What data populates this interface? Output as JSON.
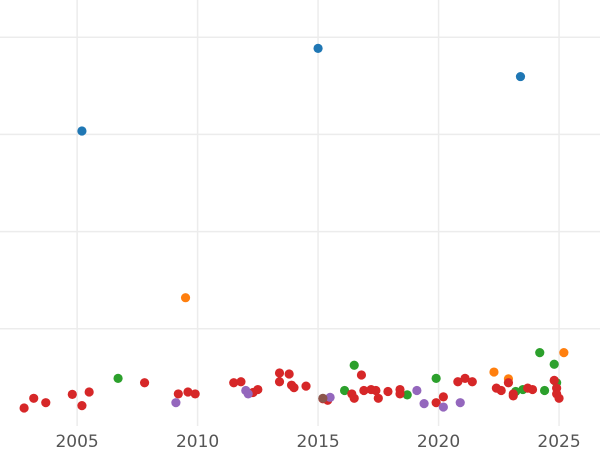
{
  "chart_data": {
    "type": "scatter",
    "title": "",
    "xlabel": "",
    "ylabel": "",
    "xlim": [
      2001.8,
      2026.7
    ],
    "ylim": [
      0,
      100
    ],
    "xticks": [
      2005,
      2010,
      2015,
      2020,
      2025
    ],
    "yticks": [
      20,
      40,
      60,
      80,
      100
    ],
    "show_y_tick_labels": false,
    "grid": true,
    "series": [
      {
        "color": "#1f77b4",
        "points": [
          [
            2005.2,
            60.7
          ],
          [
            2015.0,
            77.7
          ],
          [
            2023.4,
            71.9
          ]
        ]
      },
      {
        "color": "#ff7f0e",
        "points": [
          [
            2009.5,
            26.4
          ],
          [
            2022.3,
            11.1
          ],
          [
            2022.9,
            9.7
          ],
          [
            2025.2,
            15.1
          ]
        ]
      },
      {
        "color": "#2ca02c",
        "points": [
          [
            2006.7,
            9.8
          ],
          [
            2016.1,
            7.3
          ],
          [
            2016.5,
            12.5
          ],
          [
            2018.7,
            6.4
          ],
          [
            2019.9,
            9.8
          ],
          [
            2023.2,
            7.1
          ],
          [
            2023.5,
            7.5
          ],
          [
            2024.2,
            15.1
          ],
          [
            2024.4,
            7.3
          ],
          [
            2024.8,
            12.7
          ],
          [
            2024.9,
            8.9
          ]
        ]
      },
      {
        "color": "#d62728",
        "points": [
          [
            2002.8,
            3.7
          ],
          [
            2003.2,
            5.7
          ],
          [
            2003.7,
            4.8
          ],
          [
            2004.8,
            6.5
          ],
          [
            2005.2,
            4.2
          ],
          [
            2005.5,
            7.0
          ],
          [
            2007.8,
            8.9
          ],
          [
            2009.2,
            6.6
          ],
          [
            2009.6,
            7.0
          ],
          [
            2009.9,
            6.6
          ],
          [
            2011.5,
            8.9
          ],
          [
            2011.8,
            9.1
          ],
          [
            2012.3,
            6.9
          ],
          [
            2012.5,
            7.5
          ],
          [
            2013.4,
            10.9
          ],
          [
            2013.4,
            9.1
          ],
          [
            2013.8,
            10.7
          ],
          [
            2013.9,
            8.4
          ],
          [
            2014.0,
            7.9
          ],
          [
            2014.5,
            8.2
          ],
          [
            2015.2,
            5.6
          ],
          [
            2015.4,
            5.3
          ],
          [
            2016.4,
            6.6
          ],
          [
            2016.5,
            5.7
          ],
          [
            2016.8,
            10.5
          ],
          [
            2016.9,
            7.3
          ],
          [
            2017.2,
            7.5
          ],
          [
            2017.4,
            7.3
          ],
          [
            2017.5,
            5.7
          ],
          [
            2017.9,
            7.1
          ],
          [
            2018.4,
            7.5
          ],
          [
            2018.4,
            6.6
          ],
          [
            2019.9,
            4.8
          ],
          [
            2020.2,
            6.0
          ],
          [
            2020.8,
            9.1
          ],
          [
            2021.1,
            9.8
          ],
          [
            2021.4,
            9.1
          ],
          [
            2022.4,
            7.8
          ],
          [
            2022.6,
            7.3
          ],
          [
            2022.9,
            8.9
          ],
          [
            2023.1,
            6.6
          ],
          [
            2023.1,
            6.2
          ],
          [
            2023.7,
            7.8
          ],
          [
            2023.9,
            7.5
          ],
          [
            2024.8,
            9.4
          ],
          [
            2024.9,
            7.8
          ],
          [
            2024.9,
            6.6
          ],
          [
            2025.0,
            5.7
          ]
        ]
      },
      {
        "color": "#9467bd",
        "points": [
          [
            2009.1,
            4.8
          ],
          [
            2012.0,
            7.3
          ],
          [
            2012.1,
            6.6
          ],
          [
            2015.5,
            5.9
          ],
          [
            2019.1,
            7.3
          ],
          [
            2019.4,
            4.6
          ],
          [
            2020.2,
            3.9
          ],
          [
            2020.9,
            4.8
          ]
        ]
      },
      {
        "color": "#8c564b",
        "points": [
          [
            2015.2,
            5.7
          ]
        ]
      }
    ]
  }
}
